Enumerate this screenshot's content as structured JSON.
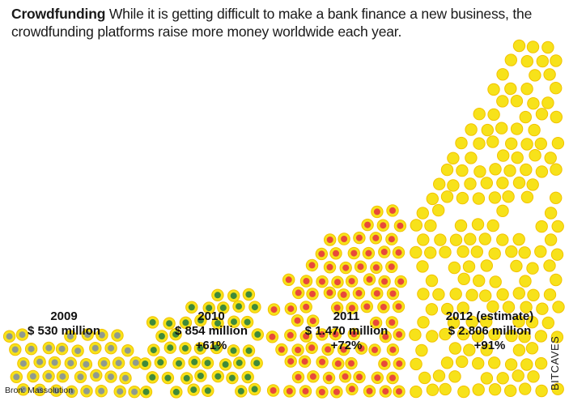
{
  "headline": {
    "lead": "Crowdfunding",
    "text": "While it is getting difficult to make a bank finance a new business, the crowdfunding platforms raise more money worldwide each year."
  },
  "source": "Bron: Massolution",
  "brand": "BITCAVES",
  "chart_data": {
    "type": "pictogram",
    "title": "Crowdfunding",
    "unit": "million dollars raised worldwide",
    "categories": [
      "2009",
      "2010",
      "2011",
      "2012 (estimate)"
    ],
    "series": [
      {
        "name": "Funds raised",
        "values": [
          530,
          854,
          1470,
          2806
        ]
      }
    ],
    "labels": [
      {
        "year": "2009",
        "amount": "$ 530 million",
        "growth": ""
      },
      {
        "year": "2010",
        "amount": "$ 854 million",
        "growth": "+61%"
      },
      {
        "year": "2011",
        "amount": "$ 1.470 million",
        "growth": "+72%"
      },
      {
        "year": "2012 (estimate)",
        "amount": "$ 2.806 million",
        "growth": "+91%"
      }
    ],
    "dot_colors": {
      "ring": "#f2c200",
      "coin": "#f7e21a",
      "y2009": "#8f9a8f",
      "y2010": "#3f8a3a",
      "y2011": "#e8493a",
      "y2012": "#f7e21a"
    }
  }
}
